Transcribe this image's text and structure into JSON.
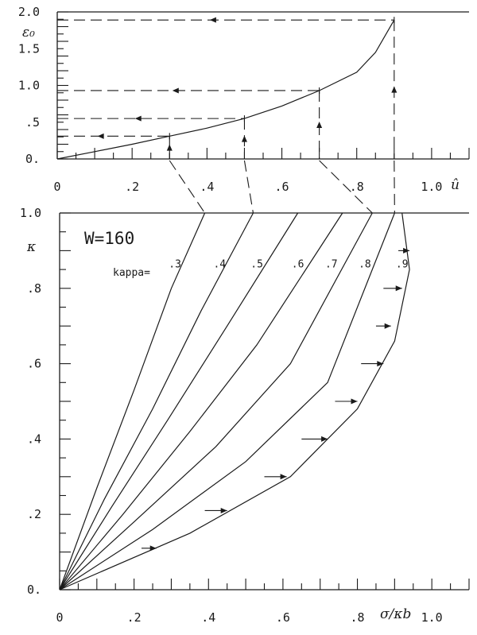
{
  "chart_data": [
    {
      "type": "line",
      "ylabel": "ε₀",
      "xlabel": "û",
      "xlim": [
        0,
        1.1
      ],
      "ylim": [
        0,
        2.0
      ],
      "x_ticks": [
        "0",
        ".2",
        ".4",
        ".6",
        ".8",
        "1.0"
      ],
      "y_ticks": [
        "0.",
        ".5",
        "1.0",
        "1.5",
        "2.0"
      ],
      "x_tick_values": [
        0,
        0.2,
        0.4,
        0.6,
        0.8,
        1.0
      ],
      "y_tick_values": [
        0,
        0.5,
        1.0,
        1.5,
        2.0
      ],
      "curve": {
        "x": [
          0,
          0.1,
          0.2,
          0.3,
          0.4,
          0.5,
          0.6,
          0.7,
          0.8,
          0.85,
          0.9
        ],
        "y": [
          0,
          0.1,
          0.2,
          0.31,
          0.42,
          0.55,
          0.72,
          0.93,
          1.18,
          1.45,
          1.89
        ]
      },
      "guides": [
        {
          "x": 0.3,
          "y": 0.31
        },
        {
          "x": 0.5,
          "y": 0.55
        },
        {
          "x": 0.7,
          "y": 0.93
        },
        {
          "x": 0.9,
          "y": 1.89
        }
      ]
    },
    {
      "type": "line",
      "ylabel": "κ",
      "xlabel": "σ/κb",
      "xlim": [
        0,
        1.1
      ],
      "ylim": [
        0,
        1.0
      ],
      "x_ticks": [
        "0",
        ".2",
        ".4",
        ".6",
        ".8",
        "1.0"
      ],
      "y_ticks": [
        "0.",
        ".2",
        ".4",
        ".6",
        ".8",
        "1.0"
      ],
      "x_tick_values": [
        0,
        0.2,
        0.4,
        0.6,
        0.8,
        1.0
      ],
      "y_tick_values": [
        0,
        0.2,
        0.4,
        0.6,
        0.8,
        1.0
      ],
      "annotation": "W=160",
      "kappa_prefix": "kappa=",
      "series": [
        {
          "name": ".3",
          "x": [
            0,
            0.1,
            0.2,
            0.3,
            0.39
          ],
          "y": [
            0,
            0.27,
            0.53,
            0.8,
            1.0
          ]
        },
        {
          "name": ".4",
          "x": [
            0,
            0.12,
            0.25,
            0.38,
            0.52
          ],
          "y": [
            0,
            0.24,
            0.48,
            0.74,
            1.0
          ]
        },
        {
          "name": ".5",
          "x": [
            0,
            0.14,
            0.29,
            0.45,
            0.64
          ],
          "y": [
            0,
            0.22,
            0.45,
            0.7,
            1.0
          ]
        },
        {
          "name": ".6",
          "x": [
            0,
            0.17,
            0.35,
            0.53,
            0.76
          ],
          "y": [
            0,
            0.2,
            0.42,
            0.65,
            1.0
          ]
        },
        {
          "name": ".7",
          "x": [
            0,
            0.2,
            0.42,
            0.62,
            0.84
          ],
          "y": [
            0,
            0.18,
            0.38,
            0.6,
            1.0
          ]
        },
        {
          "name": ".8",
          "x": [
            0,
            0.25,
            0.5,
            0.72,
            0.9
          ],
          "y": [
            0,
            0.16,
            0.34,
            0.55,
            1.0
          ]
        },
        {
          "name": ".9",
          "x": [
            0,
            0.35,
            0.62,
            0.8,
            0.9,
            0.94,
            0.92
          ],
          "y": [
            0,
            0.15,
            0.3,
            0.48,
            0.66,
            0.85,
            1.0
          ]
        }
      ],
      "arrows": [
        {
          "x": [
            0.22,
            0.26
          ],
          "y": [
            0.11,
            0.11
          ]
        },
        {
          "x": [
            0.39,
            0.45
          ],
          "y": [
            0.21,
            0.21
          ]
        },
        {
          "x": [
            0.55,
            0.61
          ],
          "y": [
            0.3,
            0.3
          ]
        },
        {
          "x": [
            0.65,
            0.72
          ],
          "y": [
            0.4,
            0.4
          ]
        },
        {
          "x": [
            0.74,
            0.8
          ],
          "y": [
            0.5,
            0.5
          ]
        },
        {
          "x": [
            0.81,
            0.87
          ],
          "y": [
            0.6,
            0.6
          ]
        },
        {
          "x": [
            0.85,
            0.89
          ],
          "y": [
            0.7,
            0.7
          ]
        },
        {
          "x": [
            0.87,
            0.92
          ],
          "y": [
            0.8,
            0.8
          ]
        },
        {
          "x": [
            0.91,
            0.94
          ],
          "y": [
            0.9,
            0.9
          ]
        }
      ]
    }
  ]
}
